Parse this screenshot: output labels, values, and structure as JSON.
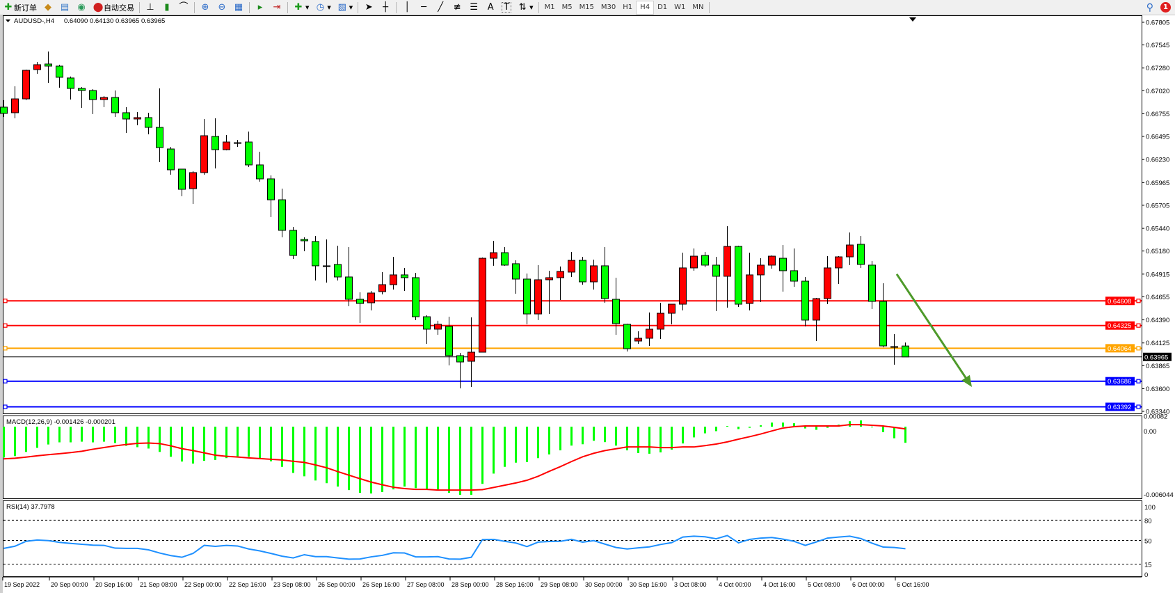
{
  "toolbar": {
    "new_order": {
      "icon": "new-order-icon",
      "label": "新订单"
    },
    "icons_left": [
      "history-icon",
      "market-watch-icon",
      "signals-icon"
    ],
    "auto_trading": {
      "icon": "auto-trading-icon",
      "label": "自动交易"
    },
    "chart_tools": [
      "bar-chart-icon",
      "candlestick-icon",
      "line-chart-icon",
      "zoom-in-icon",
      "zoom-out-icon",
      "tile-windows-icon",
      "autoscroll-icon",
      "chart-shift-icon",
      "indicators-icon",
      "periods-clock-icon",
      "templates-icon",
      "cursor-icon",
      "crosshair-icon",
      "vertical-line-icon",
      "horizontal-line-icon",
      "trendline-icon",
      "fibonacci-e-icon",
      "fibonacci-f-icon",
      "text-icon",
      "text-label-icon",
      "arrows-icon"
    ],
    "text_tool": "A",
    "label_tool": "T",
    "timeframes": [
      "M1",
      "M5",
      "M15",
      "M30",
      "H1",
      "H4",
      "D1",
      "W1",
      "MN"
    ],
    "active_timeframe": "H4",
    "search_icon": "search-icon",
    "notification_count": "1"
  },
  "chart_header": {
    "symbol": "AUDUSD-,H4",
    "ohlc": "0.64090 0.64130 0.63965 0.63965"
  },
  "chart_data": {
    "type": "candlestick",
    "symbol": "AUDUSD-",
    "timeframe": "H4",
    "bullish_color": "#ff0000",
    "bearish_color": "#00ff00",
    "ylim": [
      0.6334,
      0.67805
    ],
    "price_ticks": [
      "0.67805",
      "0.67545",
      "0.67280",
      "0.67020",
      "0.66755",
      "0.66495",
      "0.66230",
      "0.65965",
      "0.65705",
      "0.65440",
      "0.65180",
      "0.64915",
      "0.64655",
      "0.64390",
      "0.64125",
      "0.63865",
      "0.63600",
      "0.63340"
    ],
    "time_labels": [
      "19 Sep 2022",
      "20 Sep 00:00",
      "20 Sep 16:00",
      "21 Sep 08:00",
      "22 Sep 00:00",
      "22 Sep 16:00",
      "23 Sep 08:00",
      "26 Sep 00:00",
      "26 Sep 16:00",
      "27 Sep 08:00",
      "28 Sep 00:00",
      "28 Sep 16:00",
      "29 Sep 08:00",
      "30 Sep 00:00",
      "30 Sep 16:00",
      "3 Oct 08:00",
      "4 Oct 00:00",
      "4 Oct 16:00",
      "5 Oct 08:00",
      "6 Oct 00:00",
      "6 Oct 16:00"
    ],
    "candles_ohlc": [
      [
        0.66831,
        0.6691,
        0.66719,
        0.66759
      ],
      [
        0.66767,
        0.6707,
        0.66703,
        0.66926
      ],
      [
        0.66926,
        0.67262,
        0.6691,
        0.67254
      ],
      [
        0.67262,
        0.6735,
        0.67214,
        0.67318
      ],
      [
        0.67326,
        0.6747,
        0.6711,
        0.67302
      ],
      [
        0.67302,
        0.67318,
        0.67054,
        0.67174
      ],
      [
        0.67166,
        0.67182,
        0.66918,
        0.67046
      ],
      [
        0.67046,
        0.67062,
        0.66823,
        0.67022
      ],
      [
        0.67022,
        0.67038,
        0.66751,
        0.66918
      ],
      [
        0.66918,
        0.66958,
        0.66831,
        0.66942
      ],
      [
        0.66942,
        0.67022,
        0.66719,
        0.66767
      ],
      [
        0.66767,
        0.66831,
        0.66535,
        0.66695
      ],
      [
        0.66695,
        0.66775,
        0.66623,
        0.66711
      ],
      [
        0.66711,
        0.66767,
        0.66519,
        0.66599
      ],
      [
        0.66599,
        0.67046,
        0.662,
        0.66367
      ],
      [
        0.66351,
        0.66375,
        0.66056,
        0.66112
      ],
      [
        0.6612,
        0.6612,
        0.65808,
        0.65888
      ],
      [
        0.65896,
        0.66096,
        0.6572,
        0.6608
      ],
      [
        0.6608,
        0.66695,
        0.66056,
        0.66503
      ],
      [
        0.66495,
        0.66703,
        0.66128,
        0.66343
      ],
      [
        0.66343,
        0.66511,
        0.66335,
        0.66431
      ],
      [
        0.66423,
        0.66455,
        0.66375,
        0.66423
      ],
      [
        0.66431,
        0.66551,
        0.66144,
        0.66168
      ],
      [
        0.66168,
        0.66319,
        0.65976,
        0.66008
      ],
      [
        0.66008,
        0.66048,
        0.65569,
        0.65768
      ],
      [
        0.65768,
        0.65896,
        0.65337,
        0.65417
      ],
      [
        0.65417,
        0.65457,
        0.65089,
        0.65129
      ],
      [
        0.65313,
        0.65337,
        0.65177,
        0.65297
      ],
      [
        0.65289,
        0.65353,
        0.64842,
        0.6501
      ],
      [
        0.6501,
        0.65313,
        0.64818,
        0.6501
      ],
      [
        0.65026,
        0.65241,
        0.64842,
        0.64882
      ],
      [
        0.64882,
        0.65225,
        0.64546,
        0.64626
      ],
      [
        0.64626,
        0.64706,
        0.64355,
        0.64578
      ],
      [
        0.64586,
        0.64722,
        0.64498,
        0.64698
      ],
      [
        0.64714,
        0.64938,
        0.64682,
        0.64794
      ],
      [
        0.64794,
        0.65113,
        0.64738,
        0.64906
      ],
      [
        0.64906,
        0.64986,
        0.64722,
        0.64874
      ],
      [
        0.64874,
        0.6493,
        0.64387,
        0.64426
      ],
      [
        0.64426,
        0.64442,
        0.64115,
        0.64283
      ],
      [
        0.64283,
        0.64379,
        0.64219,
        0.64339
      ],
      [
        0.64315,
        0.64426,
        0.63867,
        0.63979
      ],
      [
        0.63979,
        0.64011,
        0.63604,
        0.63907
      ],
      [
        0.63915,
        0.64418,
        0.6362,
        0.64019
      ],
      [
        0.64019,
        0.65105,
        0.64019,
        0.65097
      ],
      [
        0.65097,
        0.65297,
        0.6501,
        0.65161
      ],
      [
        0.65161,
        0.65225,
        0.6501,
        0.65018
      ],
      [
        0.65034,
        0.65073,
        0.6469,
        0.64858
      ],
      [
        0.64858,
        0.64922,
        0.64339,
        0.64458
      ],
      [
        0.64458,
        0.65018,
        0.64387,
        0.6485
      ],
      [
        0.6485,
        0.64954,
        0.64458,
        0.64874
      ],
      [
        0.64874,
        0.65002,
        0.64618,
        0.64946
      ],
      [
        0.64938,
        0.65169,
        0.64882,
        0.65073
      ],
      [
        0.65073,
        0.65113,
        0.64794,
        0.64826
      ],
      [
        0.64826,
        0.65081,
        0.64738,
        0.6501
      ],
      [
        0.6501,
        0.65225,
        0.64586,
        0.64634
      ],
      [
        0.64626,
        0.64874,
        0.64219,
        0.64347
      ],
      [
        0.64339,
        0.64347,
        0.64027,
        0.64059
      ],
      [
        0.64147,
        0.64259,
        0.64115,
        0.64179
      ],
      [
        0.64179,
        0.64474,
        0.64091,
        0.64283
      ],
      [
        0.64283,
        0.64586,
        0.64171,
        0.64466
      ],
      [
        0.64466,
        0.6457,
        0.64339,
        0.6457
      ],
      [
        0.6457,
        0.65161,
        0.64498,
        0.64986
      ],
      [
        0.64986,
        0.65209,
        0.64954,
        0.65121
      ],
      [
        0.65129,
        0.65169,
        0.64994,
        0.65018
      ],
      [
        0.65018,
        0.65113,
        0.6449,
        0.6489
      ],
      [
        0.6489,
        0.65465,
        0.6453,
        0.65233
      ],
      [
        0.65233,
        0.65241,
        0.64538,
        0.6457
      ],
      [
        0.64578,
        0.65161,
        0.64498,
        0.64906
      ],
      [
        0.64906,
        0.65097,
        0.64594,
        0.65018
      ],
      [
        0.65018,
        0.65129,
        0.64978,
        0.65121
      ],
      [
        0.65097,
        0.65249,
        0.64714,
        0.64954
      ],
      [
        0.64954,
        0.65209,
        0.6477,
        0.64834
      ],
      [
        0.64834,
        0.64882,
        0.64315,
        0.64387
      ],
      [
        0.64387,
        0.64642,
        0.64147,
        0.64634
      ],
      [
        0.64634,
        0.65121,
        0.6457,
        0.64986
      ],
      [
        0.64986,
        0.65121,
        0.64802,
        0.65113
      ],
      [
        0.65113,
        0.65393,
        0.65018,
        0.65249
      ],
      [
        0.65257,
        0.65353,
        0.64986,
        0.65026
      ],
      [
        0.65018,
        0.65065,
        0.64514,
        0.64602
      ],
      [
        0.64602,
        0.6481,
        0.64075,
        0.64091
      ],
      [
        0.64083,
        0.64227,
        0.63875,
        0.64083
      ],
      [
        0.6409,
        0.6413,
        0.63965,
        0.63965
      ]
    ],
    "current_price": {
      "value": 0.63965,
      "label": "0.63965",
      "color": "#000000"
    },
    "horizontal_lines": [
      {
        "value": 0.64608,
        "label": "0.64608",
        "color": "#ff0000"
      },
      {
        "value": 0.64325,
        "label": "0.64325",
        "color": "#ff0000"
      },
      {
        "value": 0.64064,
        "label": "0.64064",
        "color": "#ffa500"
      },
      {
        "value": 0.63686,
        "label": "0.63686",
        "color": "#0000ff"
      },
      {
        "value": 0.63392,
        "label": "0.63392",
        "color": "#0000ff"
      }
    ],
    "arrow_annotation": {
      "color": "#4e9a2a",
      "direction": "down",
      "from_price": 0.64915,
      "to_price": 0.6362
    },
    "macd": {
      "label": "MACD(12,26,9) -0.001426 -0.000201",
      "axis_labels": [
        "0.00082",
        "0.00",
        "-0.006044"
      ],
      "ylim": [
        -0.006044,
        0.00082
      ],
      "histogram_color": "#00ff00",
      "signal_color": "#ff0000",
      "main": [
        -0.00273,
        -0.00261,
        -0.00224,
        -0.00188,
        -0.00158,
        -0.00139,
        -0.00139,
        -0.00133,
        -0.00139,
        -0.00133,
        -0.00145,
        -0.0017,
        -0.00182,
        -0.00194,
        -0.00224,
        -0.00267,
        -0.00309,
        -0.00327,
        -0.00303,
        -0.00295,
        -0.00279,
        -0.00263,
        -0.00267,
        -0.00279,
        -0.00307,
        -0.00356,
        -0.0041,
        -0.0044,
        -0.00477,
        -0.00501,
        -0.00531,
        -0.00562,
        -0.00586,
        -0.00592,
        -0.0058,
        -0.00556,
        -0.00531,
        -0.00545,
        -0.00551,
        -0.00556,
        -0.00586,
        -0.00604,
        -0.00604,
        -0.00507,
        -0.00416,
        -0.00356,
        -0.00319,
        -0.00313,
        -0.00279,
        -0.00246,
        -0.0021,
        -0.00168,
        -0.00156,
        -0.00125,
        -0.00137,
        -0.00168,
        -0.0021,
        -0.00234,
        -0.0024,
        -0.00228,
        -0.00204,
        -0.00149,
        -0.00095,
        -0.00059,
        -0.0004,
        6e-05,
        -0.00022,
        -0.0001,
        0.00012,
        0.00036,
        0.00036,
        0.0003,
        -0.00016,
        -0.00028,
        -0.0001,
        0.00018,
        0.00048,
        0.00055,
        -2e-05,
        -0.00048,
        -0.00103,
        -0.00143
      ],
      "signal": [
        -0.00285,
        -0.0028,
        -0.0027,
        -0.00258,
        -0.00248,
        -0.0024,
        -0.0023,
        -0.00218,
        -0.002,
        -0.00185,
        -0.0017,
        -0.00158,
        -0.00148,
        -0.00145,
        -0.0015,
        -0.0017,
        -0.00195,
        -0.00212,
        -0.00232,
        -0.00253,
        -0.00263,
        -0.00269,
        -0.00277,
        -0.00283,
        -0.00289,
        -0.00295,
        -0.00307,
        -0.00317,
        -0.00339,
        -0.00364,
        -0.00398,
        -0.0043,
        -0.00461,
        -0.00491,
        -0.00515,
        -0.00537,
        -0.00549,
        -0.00556,
        -0.00556,
        -0.00562,
        -0.00562,
        -0.00562,
        -0.00562,
        -0.00558,
        -0.00539,
        -0.00519,
        -0.00499,
        -0.00475,
        -0.0044,
        -0.00396,
        -0.00354,
        -0.00309,
        -0.00267,
        -0.00236,
        -0.00212,
        -0.00196,
        -0.0018,
        -0.0018,
        -0.0018,
        -0.00186,
        -0.00186,
        -0.0018,
        -0.0018,
        -0.00168,
        -0.00154,
        -0.00135,
        -0.00111,
        -0.00089,
        -0.00065,
        -0.00038,
        -0.00012,
        0.0,
        6e-05,
        6e-05,
        6e-05,
        6e-05,
        0.00018,
        0.00018,
        0.00012,
        6e-05,
        -6e-05,
        -0.0002
      ]
    },
    "rsi": {
      "label": "RSI(14) 37.7978",
      "axis_labels": [
        "100",
        "80",
        "50",
        "15",
        "0"
      ],
      "levels": [
        80,
        50,
        15
      ],
      "ylim": [
        0,
        100
      ],
      "color": "#1e90ff",
      "values": [
        38.3,
        41.5,
        48.7,
        50.6,
        49.7,
        47.2,
        45.6,
        44.3,
        43.1,
        42.7,
        38.6,
        38.3,
        38.3,
        36.1,
        31.4,
        27.6,
        25.1,
        30.8,
        42.7,
        41.2,
        42.7,
        41.8,
        37.4,
        34.5,
        30.8,
        26.7,
        24.1,
        28.9,
        26.0,
        26.0,
        24.1,
        22.3,
        22.6,
        25.7,
        27.9,
        31.7,
        31.4,
        25.7,
        25.7,
        26.0,
        22.6,
        22.3,
        25.1,
        51.3,
        51.6,
        48.7,
        46.2,
        40.9,
        47.5,
        48.4,
        48.7,
        51.6,
        47.5,
        49.7,
        44.6,
        39.6,
        37.4,
        39.0,
        40.5,
        44.0,
        46.8,
        55.0,
        56.3,
        55.4,
        52.5,
        57.3,
        46.5,
        51.6,
        53.5,
        54.4,
        51.9,
        48.7,
        42.7,
        47.8,
        53.5,
        55.0,
        56.3,
        52.8,
        45.9,
        40.2,
        39.6,
        37.8
      ]
    }
  }
}
